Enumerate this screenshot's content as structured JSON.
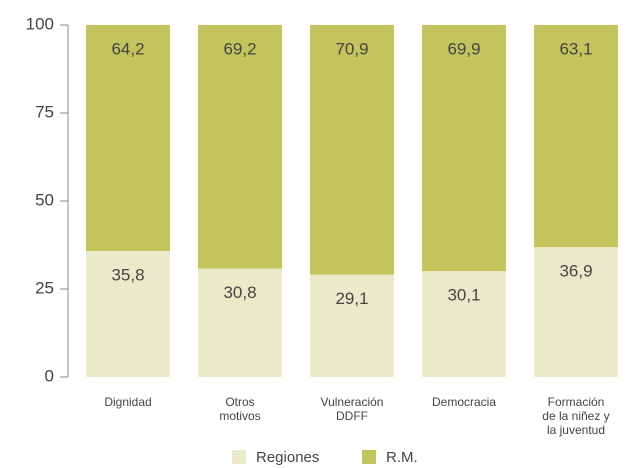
{
  "chart_data": {
    "type": "stacked_bar",
    "categories": [
      "Dignidad",
      "Otros\nmotivos",
      "Vulneración\nDDFF",
      "Democracia",
      "Formación\nde la niñez y\nla juventud"
    ],
    "series": [
      {
        "name": "Regiones",
        "color": "#eaeaca",
        "values": [
          35.8,
          30.8,
          29.1,
          30.1,
          36.9
        ],
        "value_labels": [
          "35,8",
          "30,8",
          "29,1",
          "30,1",
          "36,9"
        ]
      },
      {
        "name": "R.M.",
        "color": "#c4c45c",
        "values": [
          64.2,
          69.2,
          70.9,
          69.9,
          63.1
        ],
        "value_labels": [
          "64,2",
          "69,2",
          "70,9",
          "69,9",
          "63,1"
        ]
      }
    ],
    "ylim": [
      0,
      100
    ],
    "yticks": [
      0,
      25,
      50,
      75,
      100
    ],
    "legend": "bottom"
  }
}
